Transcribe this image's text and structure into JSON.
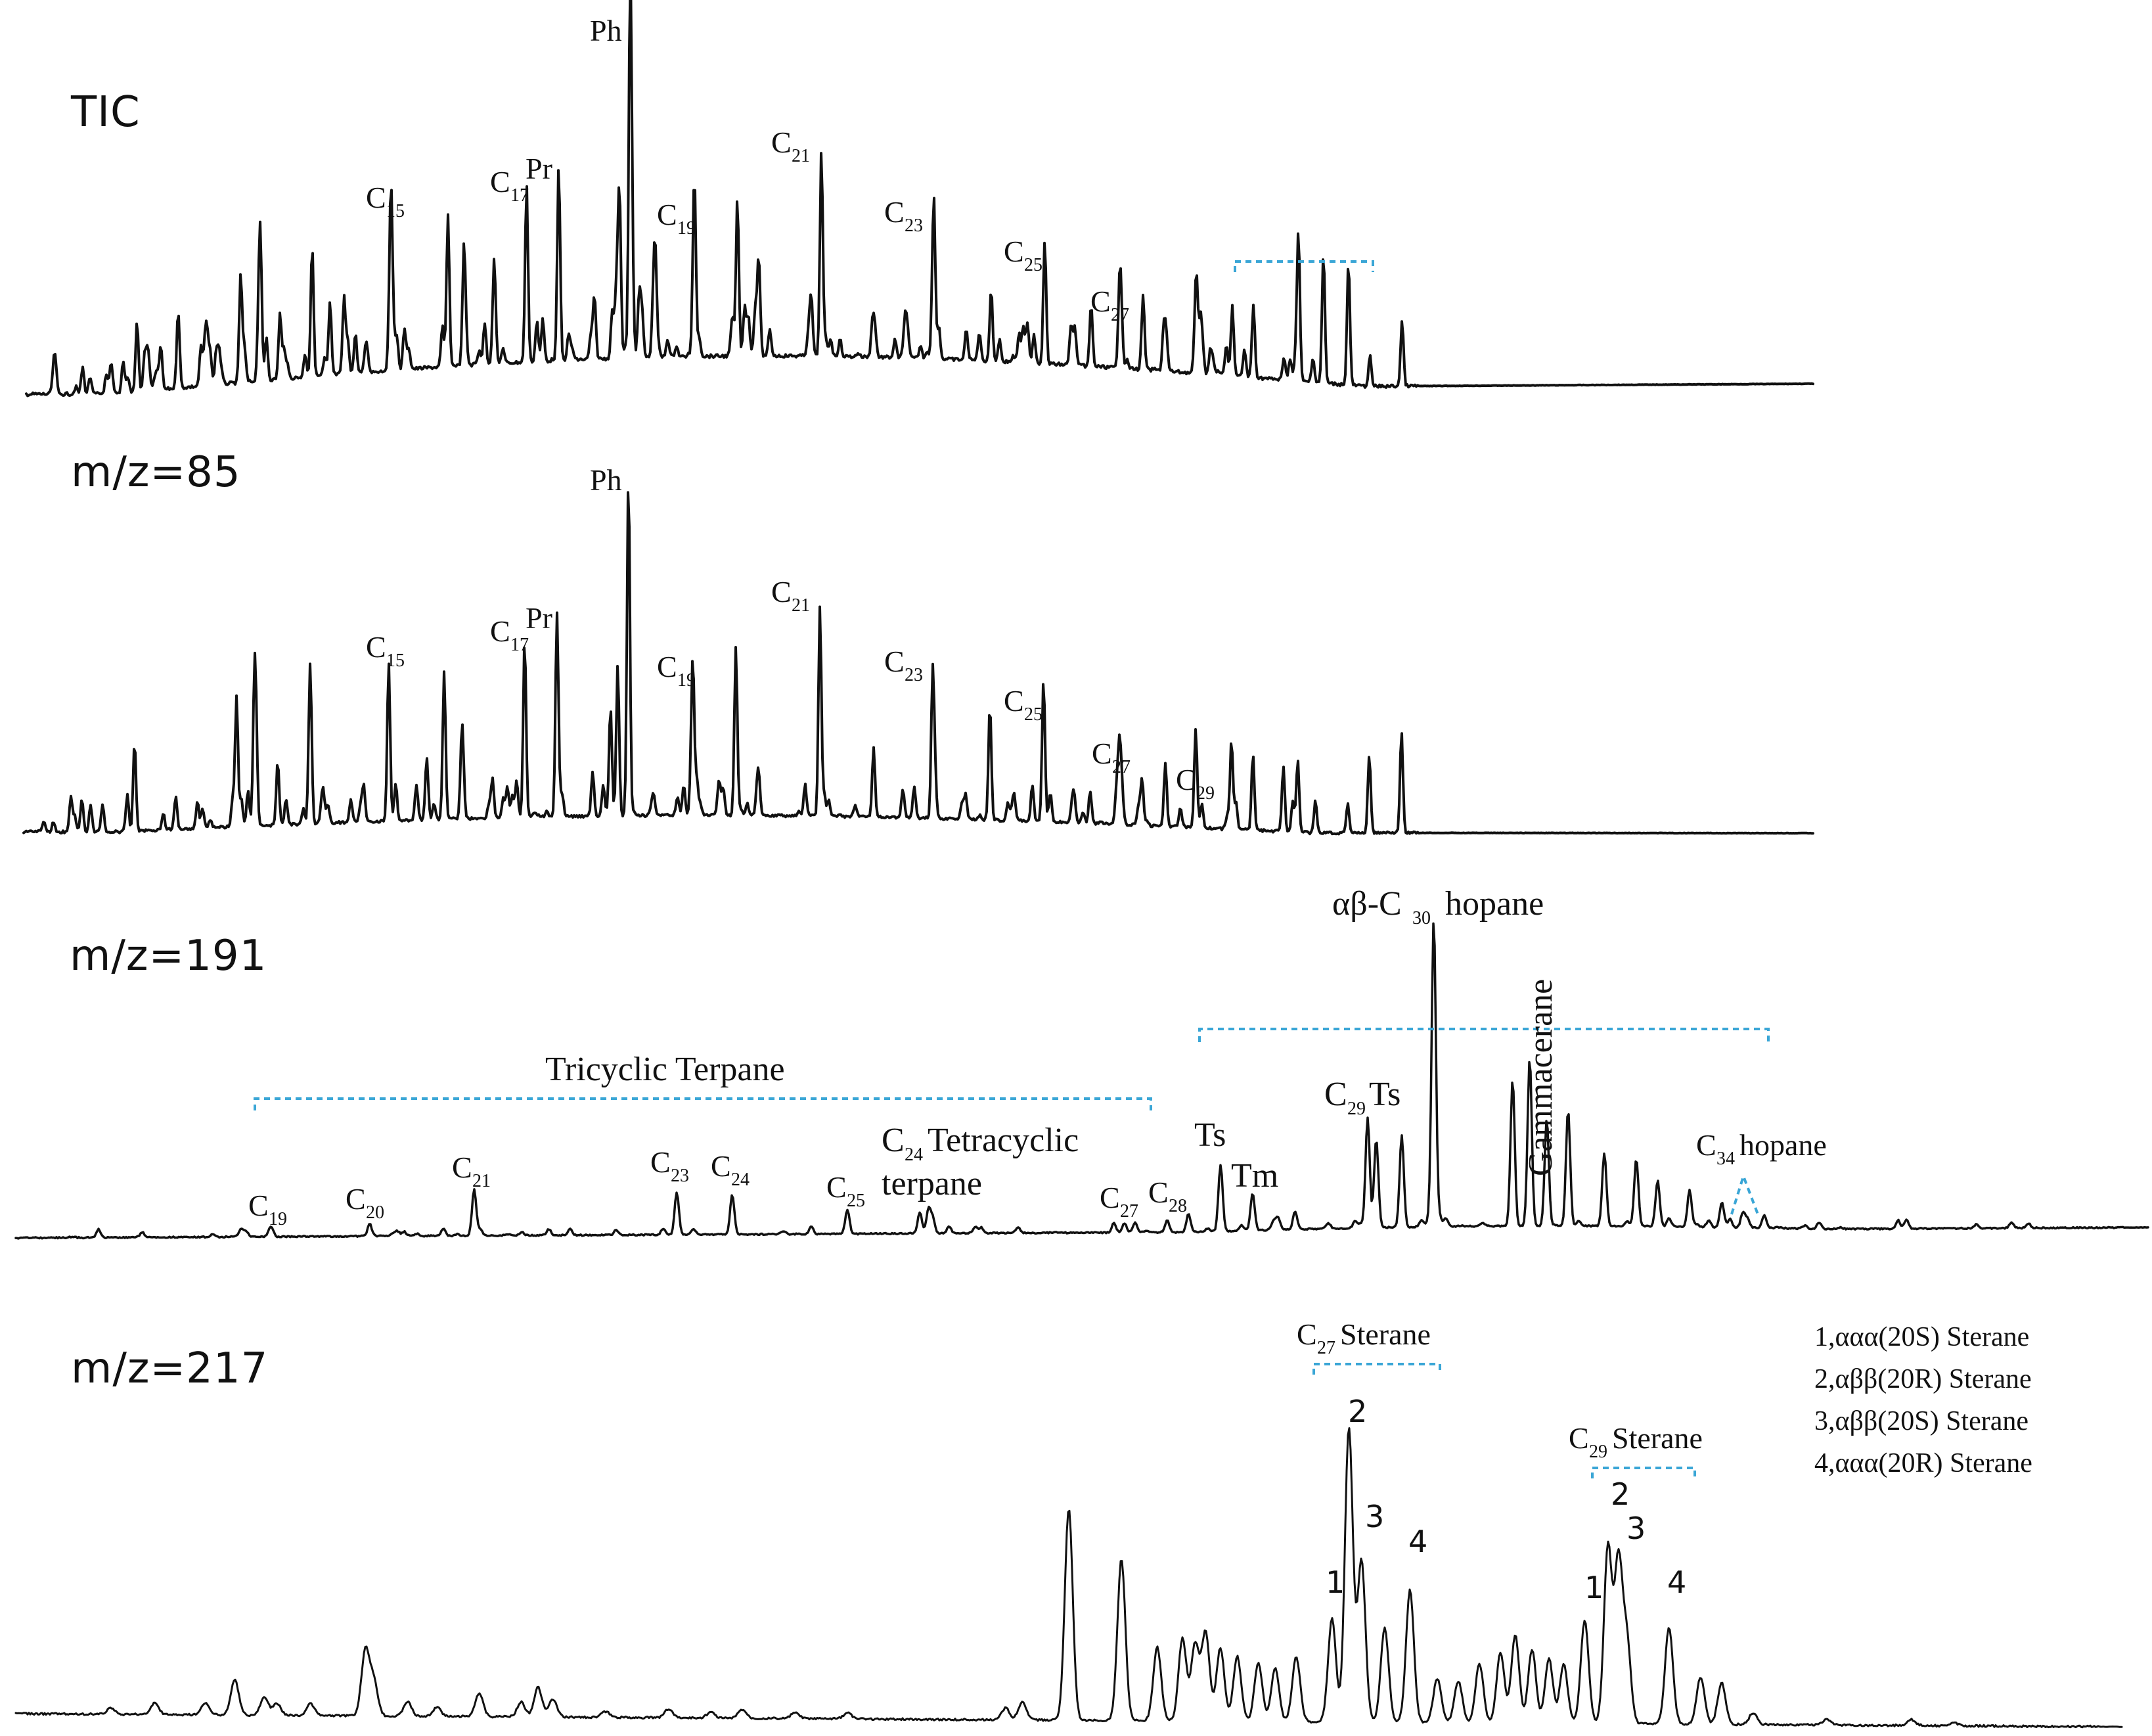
{
  "chart_data": [
    {
      "type": "line",
      "panel": "TIC",
      "title": "TIC",
      "peaks": [
        {
          "label": "C15",
          "base": "C",
          "sub": "15",
          "rt": 0.204,
          "height": 0.45
        },
        {
          "label": "C17",
          "base": "C",
          "sub": "17",
          "rt": 0.28,
          "height": 0.52
        },
        {
          "label": "Pr",
          "base": "Pr",
          "sub": "",
          "rt": 0.298,
          "height": 0.57
        },
        {
          "label": "Ph",
          "base": "Ph",
          "sub": "",
          "rt": 0.338,
          "height": 1.0
        },
        {
          "label": "C19",
          "base": "C",
          "sub": "19",
          "rt": 0.374,
          "height": 0.47
        },
        {
          "label": "C21",
          "base": "C",
          "sub": "21",
          "rt": 0.445,
          "height": 0.6
        },
        {
          "label": "C23",
          "base": "C",
          "sub": "23",
          "rt": 0.508,
          "height": 0.43
        },
        {
          "label": "C25",
          "base": "C",
          "sub": "25",
          "rt": 0.57,
          "height": 0.36
        },
        {
          "label": "C27",
          "base": "C",
          "sub": "27",
          "rt": 0.625,
          "height": 0.2
        }
      ],
      "bracket": {
        "from": 0.7,
        "to": 0.78,
        "label": ""
      }
    },
    {
      "type": "line",
      "panel": "m/z=85",
      "title": "m/z=85",
      "peaks": [
        {
          "label": "C15",
          "base": "C",
          "sub": "15",
          "rt": 0.204,
          "height": 0.46
        },
        {
          "label": "C17",
          "base": "C",
          "sub": "17",
          "rt": 0.28,
          "height": 0.52
        },
        {
          "label": "Pr",
          "base": "Pr",
          "sub": "",
          "rt": 0.298,
          "height": 0.57
        },
        {
          "label": "Ph",
          "base": "Ph",
          "sub": "",
          "rt": 0.338,
          "height": 1.0
        },
        {
          "label": "C19",
          "base": "C",
          "sub": "19",
          "rt": 0.374,
          "height": 0.43
        },
        {
          "label": "C21",
          "base": "C",
          "sub": "21",
          "rt": 0.445,
          "height": 0.61
        },
        {
          "label": "C23",
          "base": "C",
          "sub": "23",
          "rt": 0.508,
          "height": 0.42
        },
        {
          "label": "C25",
          "base": "C",
          "sub": "25",
          "rt": 0.57,
          "height": 0.33
        },
        {
          "label": "C27",
          "base": "C",
          "sub": "27",
          "rt": 0.625,
          "height": 0.14
        },
        {
          "label": "C29",
          "base": "C",
          "sub": "29",
          "rt": 0.675,
          "height": 0.06
        }
      ]
    },
    {
      "type": "line",
      "panel": "m/z=191",
      "title": "m/z=191",
      "peaks": [
        {
          "label": "C19",
          "base": "C",
          "sub": "19",
          "rt": 0.12,
          "height": 0.02
        },
        {
          "label": "C20",
          "base": "C",
          "sub": "20",
          "rt": 0.166,
          "height": 0.04
        },
        {
          "label": "C21",
          "base": "C",
          "sub": "21",
          "rt": 0.215,
          "height": 0.13
        },
        {
          "label": "C23",
          "base": "C",
          "sub": "23",
          "rt": 0.31,
          "height": 0.14
        },
        {
          "label": "C24",
          "base": "C",
          "sub": "24",
          "rt": 0.336,
          "height": 0.13
        },
        {
          "label": "C25",
          "base": "C",
          "sub": "25",
          "rt": 0.39,
          "height": 0.08
        },
        {
          "label": "C24 Tetracyclic terpane",
          "base": "C",
          "sub": "24",
          "rt": 0.424,
          "height": 0.07
        },
        {
          "label": "C27",
          "base": "C",
          "sub": "27",
          "rt": 0.515,
          "height": 0.03
        },
        {
          "label": "C28",
          "base": "C",
          "sub": "28",
          "rt": 0.54,
          "height": 0.04
        },
        {
          "label": "Ts",
          "base": "Ts",
          "sub": "",
          "rt": 0.565,
          "height": 0.21
        },
        {
          "label": "Tm",
          "base": "Tm",
          "sub": "",
          "rt": 0.58,
          "height": 0.1
        },
        {
          "label": "C29Ts",
          "base": "C",
          "sub": "29",
          "rt": 0.634,
          "height": 0.36
        },
        {
          "label": "αβ-C30 hopane",
          "base": "αβ-C",
          "sub": "30",
          "rt": 0.665,
          "height": 1.0
        },
        {
          "label": "Gammacerane",
          "base": "Gammacerane",
          "sub": "",
          "rt": 0.71,
          "height": 0.55
        },
        {
          "label": "C34hopane",
          "base": "C",
          "sub": "34",
          "rt": 0.81,
          "height": 0.05
        }
      ],
      "brackets": [
        {
          "from": 0.12,
          "to": 0.537,
          "label": "Tricyclic Terpane"
        },
        {
          "from": 0.56,
          "to": 0.825,
          "label": ""
        }
      ]
    },
    {
      "type": "line",
      "panel": "m/z=217",
      "title": "m/z=217",
      "peaks": [
        {
          "label": "1",
          "group": "C27",
          "rt": 0.625,
          "height": 0.35
        },
        {
          "label": "2",
          "group": "C27",
          "rt": 0.633,
          "height": 1.0
        },
        {
          "label": "3",
          "group": "C27",
          "rt": 0.639,
          "height": 0.55
        },
        {
          "label": "4",
          "group": "C27",
          "rt": 0.662,
          "height": 0.45
        },
        {
          "label": "1",
          "group": "C29",
          "rt": 0.745,
          "height": 0.35
        },
        {
          "label": "2",
          "group": "C29",
          "rt": 0.756,
          "height": 0.6
        },
        {
          "label": "3",
          "group": "C29",
          "rt": 0.761,
          "height": 0.55
        },
        {
          "label": "4",
          "group": "C29",
          "rt": 0.785,
          "height": 0.33
        }
      ],
      "brackets": [
        {
          "from": 0.61,
          "to": 0.675,
          "label": "C27Sterane",
          "base": "C",
          "sub": "27",
          "rest": "Sterane"
        },
        {
          "from": 0.743,
          "to": 0.79,
          "label": "C29Sterane",
          "base": "C",
          "sub": "29",
          "rest": "Sterane"
        }
      ],
      "legend": {
        "placement": "top-right",
        "entries": [
          "1,ααα(20S) Sterane",
          "2,αββ(20R) Sterane",
          "3,αββ(20S) Sterane",
          "4,ααα(20R) Sterane"
        ]
      }
    }
  ],
  "labels191": {
    "tetra_top": "Tetracyclic",
    "tetra_bottom": "terpane",
    "hopane_word": "hopane",
    "ts_word": "Ts"
  }
}
